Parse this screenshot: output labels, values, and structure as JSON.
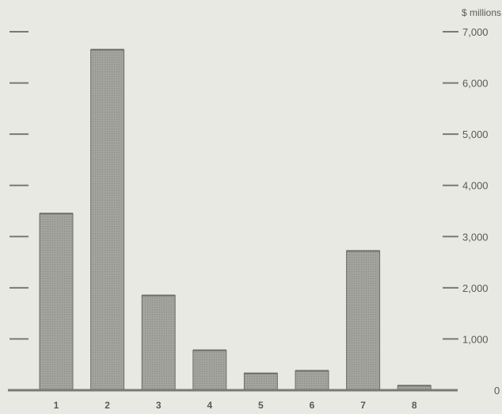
{
  "chart_data": {
    "type": "bar",
    "ylabel": "$ millions",
    "categories": [
      "1",
      "2",
      "3",
      "4",
      "5",
      "6",
      "7",
      "8"
    ],
    "values": [
      3450,
      6650,
      1850,
      780,
      330,
      380,
      2720,
      90
    ],
    "ylim": [
      0,
      7000
    ],
    "yticks": [
      0,
      1000,
      2000,
      3000,
      4000,
      5000,
      6000,
      7000
    ],
    "ytick_labels": [
      "0",
      "1,000",
      "2,000",
      "3,000",
      "4,000",
      "5,000",
      "6,000",
      "7,000"
    ],
    "grid": false,
    "colors": {
      "bar": "#9c9c96",
      "bar_edge": "#6e6e69",
      "axis": "#7a7a75",
      "text": "#5a5a56"
    }
  }
}
